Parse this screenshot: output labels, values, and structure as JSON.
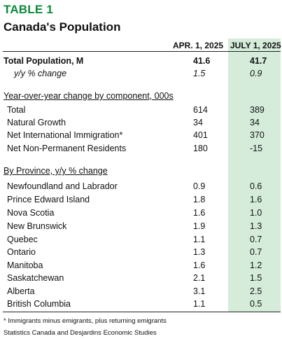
{
  "table": {
    "label": "TABLE 1",
    "title": "Canada's Population",
    "col1": "APR. 1, 2025",
    "col2": "JULY 1, 2025"
  },
  "summary": {
    "total": {
      "label": "Total Population, M",
      "v1": "41.6",
      "v2": "41.7"
    },
    "yoy": {
      "label": "y/y % change",
      "v1": "1.5",
      "v2": "0.9"
    }
  },
  "components": {
    "heading": "Year-over-year change by component, 000s",
    "rows": [
      {
        "label": "Total",
        "v1": "614",
        "v2": "389"
      },
      {
        "label": "Natural Growth",
        "v1": "34",
        "v2": "34"
      },
      {
        "label": "Net International Immigration*",
        "v1": "401",
        "v2": "370"
      },
      {
        "label": "Net Non-Permanent Residents",
        "v1": "180",
        "v2": "-15"
      }
    ]
  },
  "provinces": {
    "heading": "By Province, y/y % change",
    "rows": [
      {
        "label": "Newfoundland and Labrador",
        "v1": "0.9",
        "v2": "0.6"
      },
      {
        "label": "Prince Edward Island",
        "v1": "1.8",
        "v2": "1.6"
      },
      {
        "label": "Nova Scotia",
        "v1": "1.6",
        "v2": "1.0"
      },
      {
        "label": "New Brunswick",
        "v1": "1.9",
        "v2": "1.3"
      },
      {
        "label": "Quebec",
        "v1": "1.1",
        "v2": "0.7"
      },
      {
        "label": "Ontario",
        "v1": "1.3",
        "v2": "0.7"
      },
      {
        "label": "Manitoba",
        "v1": "1.6",
        "v2": "1.2"
      },
      {
        "label": "Saskatchewan",
        "v1": "2.1",
        "v2": "1.5"
      },
      {
        "label": "Alberta",
        "v1": "3.1",
        "v2": "2.5"
      },
      {
        "label": "British Columbia",
        "v1": "1.1",
        "v2": "0.5"
      }
    ]
  },
  "footnote": "* Immigrants minus emigrants, plus returning emigrants",
  "source": "Statistics Canada and Desjardins Economic Studies",
  "colors": {
    "title_green": "#0a8a3a",
    "highlight": "#d5ecdb"
  }
}
